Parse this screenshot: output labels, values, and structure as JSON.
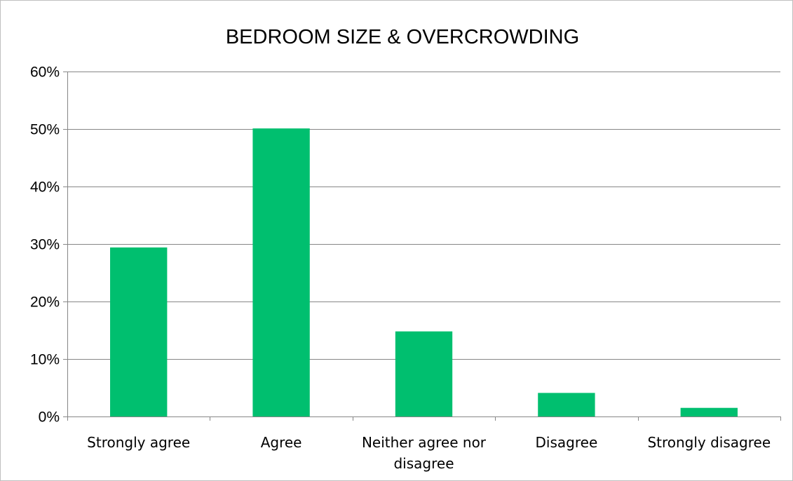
{
  "chart_data": {
    "type": "bar",
    "title": "BEDROOM SIZE & OVERCROWDING",
    "xlabel": "",
    "ylabel": "",
    "categories": [
      [
        "Strongly agree"
      ],
      [
        "Agree"
      ],
      [
        "Neither agree nor",
        "disagree"
      ],
      [
        "Disagree"
      ],
      [
        "Strongly disagree"
      ]
    ],
    "values": [
      29.4,
      50.1,
      14.8,
      4.1,
      1.5
    ],
    "ylim": [
      0,
      60
    ],
    "yticks": [
      "0%",
      "10%",
      "20%",
      "30%",
      "40%",
      "50%",
      "60%"
    ],
    "ytick_values": [
      0,
      10,
      20,
      30,
      40,
      50,
      60
    ],
    "grid": true,
    "legend": "none",
    "bar_color": "#00BF6F",
    "grid_color": "#868686",
    "axis_color": "#868686"
  }
}
